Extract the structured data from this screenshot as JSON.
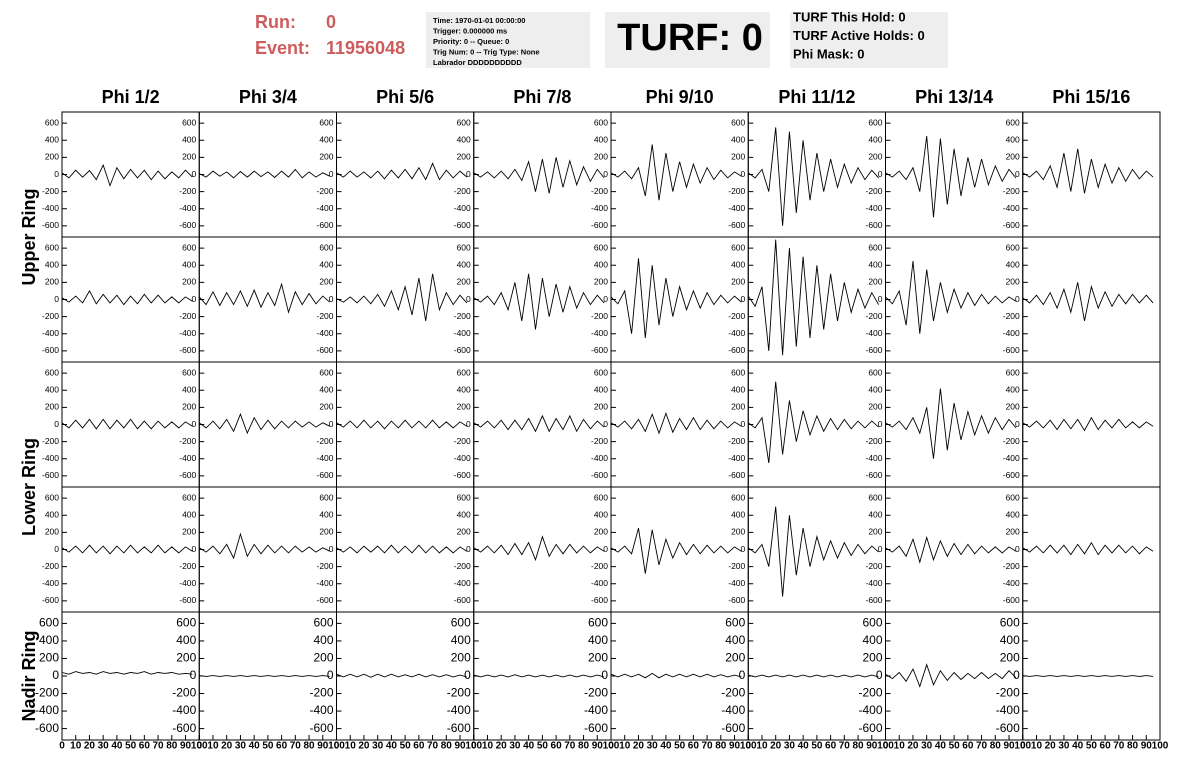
{
  "header": {
    "run_label": "Run:",
    "run": "0",
    "event_label": "Event:",
    "event": "11956048",
    "info": [
      "Time: 1970-01-01 00:00:00",
      "Trigger: 0.000000 ms",
      "Priority: 0 -- Queue: 0",
      "Trig Num: 0 -- Trig Type: None",
      "Labrador DDDDDDDDDD"
    ],
    "turf": "TURF: 0",
    "turf_info": [
      "TURF This Hold: 0",
      "TURF Active Holds: 0",
      "Phi Mask: 0"
    ]
  },
  "columns": [
    "Phi 1/2",
    "Phi 3/4",
    "Phi 5/6",
    "Phi 7/8",
    "Phi 9/10",
    "Phi 11/12",
    "Phi 13/14",
    "Phi 15/16"
  ],
  "rings": [
    "Upper Ring",
    "Lower Ring",
    "Nadir Ring"
  ],
  "chart_data": {
    "type": "line",
    "color": "#000000",
    "x": [
      0,
      5,
      10,
      15,
      20,
      25,
      30,
      35,
      40,
      45,
      50,
      55,
      60,
      65,
      70,
      75,
      80,
      85,
      90,
      95
    ],
    "xlim": [
      0,
      100
    ],
    "xticks": [
      0,
      10,
      20,
      30,
      40,
      50,
      60,
      70,
      80,
      90,
      100
    ],
    "ylim": [
      -730,
      730
    ],
    "yticks": [
      -600,
      -400,
      -200,
      0,
      200,
      400,
      600
    ],
    "series": [
      {
        "values": [
          20,
          -40,
          50,
          -30,
          45,
          -60,
          110,
          -130,
          80,
          -50,
          60,
          -40,
          50,
          -60,
          40,
          -50,
          30,
          -40,
          50,
          -30
        ]
      },
      {
        "values": [
          10,
          -30,
          40,
          -20,
          30,
          -40,
          35,
          -30,
          40,
          -25,
          30,
          -35,
          40,
          -30,
          60,
          -40,
          30,
          -30,
          20,
          -20
        ]
      },
      {
        "values": [
          20,
          -30,
          40,
          -30,
          30,
          -40,
          40,
          -50,
          50,
          -40,
          60,
          -50,
          80,
          -60,
          130,
          -60,
          50,
          -40,
          40,
          -30
        ]
      },
      {
        "values": [
          20,
          -30,
          30,
          -40,
          40,
          -50,
          60,
          -70,
          150,
          -200,
          180,
          -220,
          200,
          -150,
          160,
          -120,
          90,
          -80,
          60,
          -40
        ]
      },
      {
        "values": [
          20,
          -30,
          40,
          -50,
          80,
          -250,
          350,
          -300,
          250,
          -200,
          150,
          -150,
          120,
          -100,
          80,
          -60,
          50,
          -40,
          30,
          -20
        ]
      },
      {
        "values": [
          20,
          -40,
          60,
          -200,
          550,
          -600,
          500,
          -450,
          400,
          -300,
          250,
          -200,
          180,
          -150,
          120,
          -100,
          80,
          -60,
          50,
          -40
        ]
      },
      {
        "values": [
          20,
          -30,
          40,
          -60,
          80,
          -200,
          450,
          -500,
          420,
          -350,
          300,
          -250,
          200,
          -150,
          180,
          -120,
          100,
          -80,
          60,
          -40
        ]
      },
      {
        "values": [
          20,
          -30,
          40,
          -60,
          100,
          -150,
          250,
          -200,
          300,
          -220,
          180,
          -150,
          120,
          -100,
          80,
          -80,
          60,
          -50,
          40,
          -30
        ]
      },
      {
        "values": [
          20,
          -30,
          40,
          -40,
          100,
          -50,
          60,
          -40,
          50,
          -60,
          40,
          -50,
          60,
          -40,
          50,
          -40,
          30,
          -40,
          30,
          -20
        ]
      },
      {
        "values": [
          30,
          -60,
          90,
          -70,
          80,
          -60,
          100,
          -80,
          110,
          -90,
          80,
          -70,
          180,
          -150,
          90,
          -60,
          70,
          -50,
          40,
          -30
        ]
      },
      {
        "values": [
          10,
          -30,
          30,
          -40,
          40,
          -50,
          60,
          -80,
          100,
          -120,
          150,
          -180,
          250,
          -250,
          300,
          -120,
          80,
          -60,
          50,
          -40
        ]
      },
      {
        "values": [
          20,
          -30,
          40,
          -60,
          80,
          -120,
          200,
          -250,
          300,
          -350,
          250,
          -200,
          180,
          -150,
          150,
          -100,
          80,
          -60,
          50,
          -40
        ]
      },
      {
        "values": [
          30,
          -50,
          100,
          -400,
          480,
          -450,
          400,
          -300,
          250,
          -200,
          150,
          -120,
          100,
          -100,
          80,
          -60,
          50,
          -40,
          40,
          -30
        ]
      },
      {
        "values": [
          40,
          -80,
          150,
          -600,
          700,
          -650,
          600,
          -550,
          500,
          -450,
          400,
          -350,
          300,
          -250,
          200,
          -150,
          120,
          -100,
          80,
          -60
        ]
      },
      {
        "values": [
          30,
          -50,
          100,
          -300,
          450,
          -400,
          350,
          -250,
          200,
          -150,
          120,
          -100,
          80,
          -70,
          60,
          -50,
          40,
          -40,
          30,
          -20
        ]
      },
      {
        "values": [
          20,
          -40,
          50,
          -60,
          80,
          -100,
          120,
          -150,
          200,
          -250,
          150,
          -100,
          90,
          -80,
          60,
          -50,
          60,
          -40,
          50,
          -40
        ]
      },
      {
        "values": [
          20,
          -40,
          50,
          -40,
          60,
          -50,
          60,
          -50,
          50,
          -40,
          60,
          -50,
          40,
          -50,
          40,
          -40,
          30,
          -40,
          30,
          -20
        ]
      },
      {
        "values": [
          20,
          -40,
          40,
          -50,
          60,
          -80,
          120,
          -100,
          80,
          -60,
          50,
          -50,
          40,
          -40,
          40,
          -30,
          30,
          -30,
          20,
          -20
        ]
      },
      {
        "values": [
          20,
          -30,
          40,
          -40,
          50,
          -40,
          40,
          -50,
          40,
          -40,
          50,
          -40,
          40,
          -40,
          50,
          -40,
          30,
          -40,
          30,
          -20
        ]
      },
      {
        "values": [
          20,
          -30,
          40,
          -40,
          50,
          -60,
          50,
          -60,
          70,
          -80,
          100,
          -80,
          70,
          -60,
          100,
          -80,
          60,
          -50,
          40,
          -30
        ]
      },
      {
        "values": [
          20,
          -30,
          40,
          -50,
          60,
          -80,
          120,
          -100,
          130,
          -90,
          70,
          -60,
          80,
          -60,
          50,
          -50,
          40,
          -40,
          30,
          -20
        ]
      },
      {
        "values": [
          20,
          -40,
          80,
          -450,
          500,
          -350,
          280,
          -200,
          160,
          -120,
          100,
          -80,
          70,
          -60,
          60,
          -50,
          40,
          -40,
          40,
          -30
        ]
      },
      {
        "values": [
          20,
          -30,
          40,
          -60,
          80,
          -100,
          200,
          -400,
          420,
          -300,
          250,
          -180,
          150,
          -120,
          100,
          -100,
          80,
          -60,
          60,
          -40
        ]
      },
      {
        "values": [
          20,
          -30,
          40,
          -40,
          50,
          -60,
          60,
          -50,
          60,
          -70,
          80,
          -60,
          50,
          -40,
          60,
          -40,
          30,
          -40,
          30,
          -20
        ]
      },
      {
        "values": [
          20,
          -30,
          40,
          -40,
          50,
          -40,
          40,
          -50,
          40,
          -40,
          50,
          -40,
          30,
          -40,
          50,
          -40,
          30,
          -40,
          30,
          -20
        ]
      },
      {
        "values": [
          20,
          -30,
          40,
          -50,
          60,
          -100,
          180,
          -80,
          60,
          -50,
          50,
          -40,
          40,
          -40,
          40,
          -30,
          30,
          -30,
          20,
          -20
        ]
      },
      {
        "values": [
          20,
          -30,
          30,
          -40,
          40,
          -30,
          40,
          -40,
          50,
          -40,
          40,
          -40,
          50,
          -40,
          40,
          -40,
          30,
          -40,
          30,
          -20
        ]
      },
      {
        "values": [
          20,
          -30,
          40,
          -40,
          50,
          -60,
          70,
          -60,
          80,
          -120,
          150,
          -80,
          60,
          -50,
          60,
          -40,
          40,
          -40,
          30,
          -20
        ]
      },
      {
        "values": [
          20,
          -30,
          40,
          -50,
          250,
          -280,
          230,
          -180,
          120,
          -100,
          80,
          -60,
          60,
          -50,
          50,
          -40,
          40,
          -40,
          30,
          -20
        ]
      },
      {
        "values": [
          20,
          -40,
          60,
          -200,
          500,
          -550,
          400,
          -300,
          250,
          -200,
          150,
          -120,
          100,
          -100,
          80,
          -70,
          60,
          -50,
          40,
          -30
        ]
      },
      {
        "values": [
          20,
          -30,
          40,
          -80,
          120,
          -150,
          140,
          -120,
          100,
          -80,
          70,
          -60,
          60,
          -50,
          40,
          -40,
          30,
          -40,
          30,
          -20
        ]
      },
      {
        "values": [
          20,
          -30,
          40,
          -40,
          50,
          -40,
          50,
          -60,
          60,
          -50,
          80,
          -60,
          50,
          -40,
          50,
          -40,
          40,
          -50,
          30,
          -20
        ]
      },
      {
        "values": [
          40,
          20,
          50,
          30,
          40,
          20,
          50,
          30,
          40,
          20,
          40,
          30,
          50,
          20,
          40,
          30,
          40,
          20,
          30,
          20
        ]
      },
      {
        "values": [
          5,
          -5,
          5,
          -5,
          5,
          -5,
          5,
          -5,
          5,
          -5,
          5,
          -5,
          5,
          -5,
          5,
          -5,
          5,
          -5,
          5,
          -5
        ]
      },
      {
        "values": [
          20,
          -10,
          20,
          -10,
          20,
          -15,
          20,
          -10,
          20,
          -10,
          15,
          -10,
          20,
          -10,
          15,
          -10,
          15,
          -10,
          10,
          -10
        ]
      },
      {
        "values": [
          10,
          -10,
          10,
          -10,
          10,
          -10,
          15,
          -10,
          10,
          -10,
          10,
          -10,
          10,
          -10,
          10,
          -10,
          10,
          -10,
          10,
          -10
        ]
      },
      {
        "values": [
          20,
          -10,
          20,
          -10,
          20,
          -20,
          30,
          -20,
          20,
          -10,
          20,
          -10,
          20,
          -10,
          20,
          -10,
          15,
          -10,
          10,
          -10
        ]
      },
      {
        "values": [
          10,
          -10,
          10,
          -10,
          10,
          -10,
          10,
          -10,
          10,
          -10,
          10,
          -10,
          10,
          -10,
          10,
          -10,
          10,
          -10,
          10,
          -10
        ]
      },
      {
        "values": [
          20,
          -30,
          40,
          -60,
          80,
          -120,
          130,
          -100,
          60,
          -50,
          40,
          -40,
          30,
          -30,
          40,
          -30,
          30,
          -30,
          60,
          -20
        ]
      },
      {
        "values": [
          5,
          -5,
          5,
          -5,
          5,
          -5,
          5,
          -5,
          5,
          -5,
          5,
          -5,
          5,
          -5,
          5,
          -5,
          5,
          -5,
          5,
          -5
        ]
      }
    ]
  }
}
